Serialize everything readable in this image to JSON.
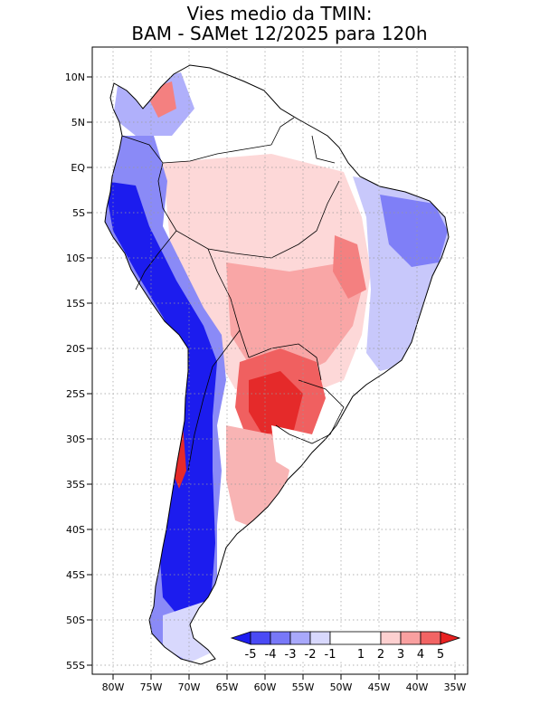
{
  "title": {
    "line1": "Vies medio da TMIN:",
    "line2": "BAM - SAMet 12/2025  para 120h"
  },
  "axes": {
    "lat_labels": [
      "10N",
      "5N",
      "EQ",
      "5S",
      "10S",
      "15S",
      "20S",
      "25S",
      "30S",
      "35S",
      "40S",
      "45S",
      "50S",
      "55S"
    ],
    "lon_labels": [
      "80W",
      "75W",
      "70W",
      "65W",
      "60W",
      "55W",
      "50W",
      "45W",
      "40W",
      "35W"
    ]
  },
  "colorbar": {
    "labels": [
      "-5",
      "-4",
      "-3",
      "-2",
      "-1",
      "1",
      "2",
      "3",
      "4",
      "5"
    ],
    "colors": [
      "#1e1ef0",
      "#4a4af5",
      "#7878f8",
      "#a8a8fb",
      "#d8d8fd",
      "#ffffff",
      "#fdd0d0",
      "#f9a0a0",
      "#f26464",
      "#e82222"
    ]
  }
}
